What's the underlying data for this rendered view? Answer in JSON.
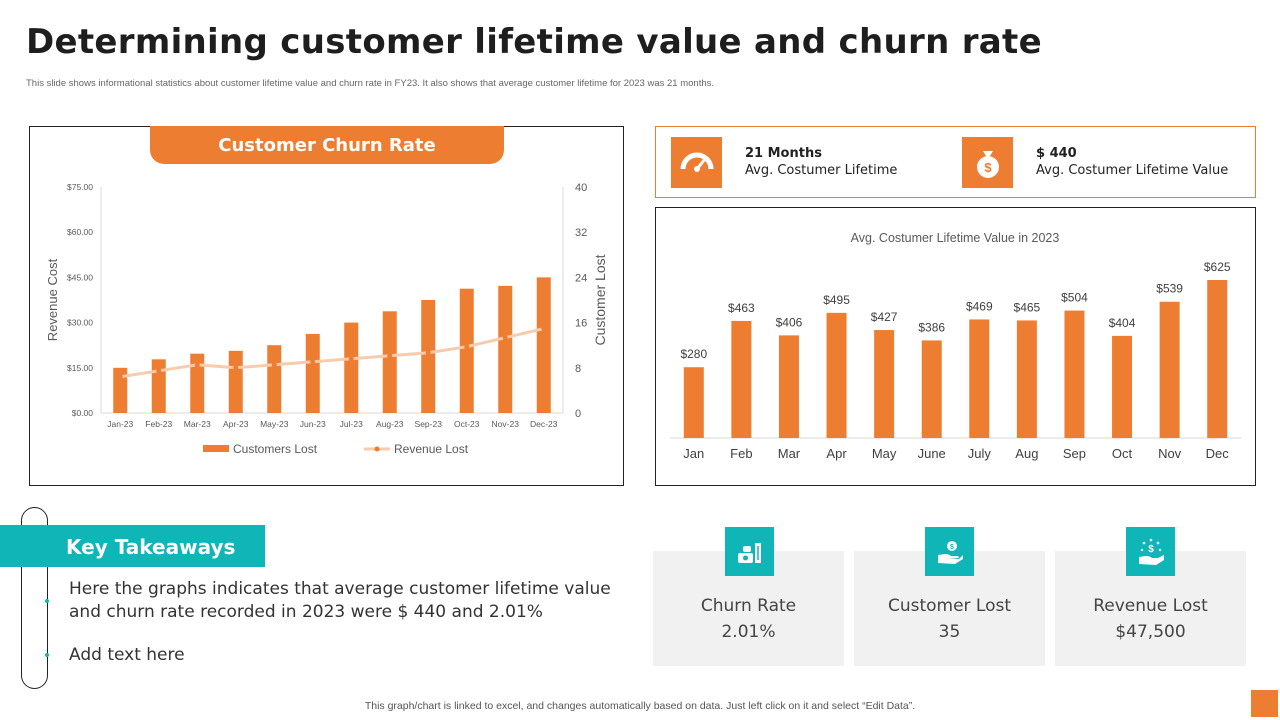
{
  "page": {
    "title": "Determining customer lifetime value and churn rate",
    "subtitle": "This slide shows informational statistics about customer lifetime value and churn rate in FY23. It also shows that average customer lifetime for 2023 was 21 months.",
    "footer": "This graph/chart is linked to excel, and changes automatically based on data. Just left click on it and select “Edit Data”."
  },
  "colors": {
    "accent": "#ed7d31",
    "teal": "#10b5b8",
    "line": "#f8cbad"
  },
  "kpis": [
    {
      "value": "21 Months",
      "label": "Avg. Costumer Lifetime",
      "icon": "gauge-icon"
    },
    {
      "value": "$ 440",
      "label": "Avg. Costumer Lifetime Value",
      "icon": "money-bag-icon"
    }
  ],
  "takeaways": {
    "title": "Key Takeaways",
    "items": [
      "Here the graphs indicates that average customer lifetime value",
      "and churn rate recorded in 2023 were $ 440 and 2.01%",
      "Add text here"
    ]
  },
  "stats": [
    {
      "label": "Churn Rate",
      "value": "2.01%",
      "icon": "money-stack-icon"
    },
    {
      "label": "Customer Lost",
      "value": "35",
      "icon": "hand-coin-icon"
    },
    {
      "label": "Revenue Lost",
      "value": "$47,500",
      "icon": "hand-sparkle-icon"
    }
  ],
  "chart_data": [
    {
      "type": "bar",
      "title": "Customer Churn Rate",
      "categories": [
        "Jan-23",
        "Feb-23",
        "Mar-23",
        "Apr-23",
        "May-23",
        "Jun-23",
        "Jul-23",
        "Aug-23",
        "Sep-23",
        "Oct-23",
        "Nov-23",
        "Dec-23"
      ],
      "series": [
        {
          "name": "Customers Lost",
          "type": "bar",
          "axis": "right",
          "values": [
            8,
            9.5,
            10.5,
            11,
            12,
            14,
            16,
            18,
            20,
            22,
            22.5,
            24
          ]
        },
        {
          "name": "Revenue Lost",
          "type": "line",
          "axis": "left",
          "values": [
            12,
            14,
            16,
            15,
            16,
            17,
            18,
            19,
            20,
            22,
            25,
            28
          ]
        }
      ],
      "ylabel": "Revenue Cost",
      "y2label": "Customer Lost",
      "ylim": [
        0,
        75
      ],
      "y2lim": [
        0,
        40
      ],
      "yticks": [
        "$0.00",
        "$15.00",
        "$30.00",
        "$45.00",
        "$60.00",
        "$75.00"
      ],
      "y2ticks": [
        "0",
        "8",
        "16",
        "24",
        "32",
        "40"
      ],
      "legend": "bottom"
    },
    {
      "type": "bar",
      "title": "Avg. Costumer Lifetime Value in 2023",
      "categories": [
        "Jan",
        "Feb",
        "Mar",
        "Apr",
        "May",
        "June",
        "July",
        "Aug",
        "Sep",
        "Oct",
        "Nov",
        "Dec"
      ],
      "values": [
        280,
        463,
        406,
        495,
        427,
        386,
        469,
        465,
        504,
        404,
        539,
        625
      ],
      "labels": [
        "$280",
        "$463",
        "$406",
        "$495",
        "$427",
        "$386",
        "$469",
        "$465",
        "$504",
        "$404",
        "$539",
        "$625"
      ],
      "ylim": [
        0,
        625
      ],
      "legend": "none"
    }
  ]
}
